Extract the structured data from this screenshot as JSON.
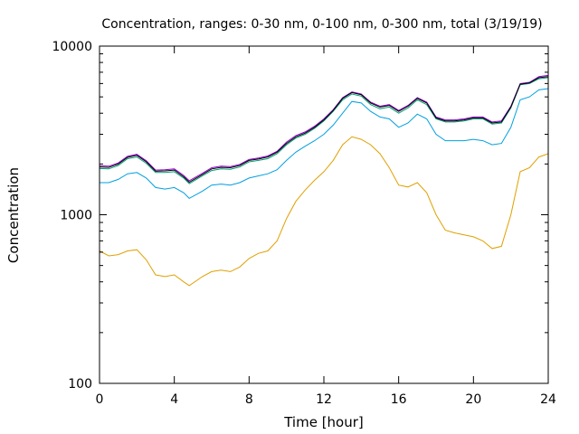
{
  "chart_data": {
    "type": "line",
    "title": "Concentration, ranges: 0-30 nm, 0-100 nm, 0-300 nm, total (3/19/19)",
    "xlabel": "Time [hour]",
    "ylabel": "Concentration",
    "xlim": [
      0,
      24
    ],
    "ylim": [
      100,
      10000
    ],
    "yscale": "log",
    "grid": false,
    "legend": "none",
    "xticks": [
      0,
      4,
      8,
      12,
      16,
      20,
      24
    ],
    "xtick_labels": [
      "0",
      "4",
      "8",
      "12",
      "16",
      "20",
      "24"
    ],
    "yticks": [
      100,
      1000,
      10000
    ],
    "ytick_labels": [
      "100",
      "1000",
      "10000"
    ],
    "series": [
      {
        "color": "#e0a000",
        "x": [
          0,
          0.5,
          1,
          1.5,
          2,
          2.5,
          3,
          3.5,
          4,
          4.5,
          4.8,
          5.5,
          6,
          6.5,
          7,
          7.5,
          8,
          8.5,
          9,
          9.5,
          10,
          10.5,
          11,
          11.5,
          12,
          12.5,
          13,
          13.5,
          14,
          14.5,
          15,
          15.5,
          16,
          16.5,
          17,
          17.5,
          18,
          18.5,
          19,
          19.5,
          20,
          20.5,
          21,
          21.5,
          22,
          22.5,
          23,
          23.5,
          24
        ],
        "y": [
          610,
          570,
          580,
          610,
          620,
          540,
          440,
          430,
          440,
          400,
          380,
          430,
          460,
          470,
          460,
          490,
          550,
          590,
          610,
          700,
          950,
          1200,
          1400,
          1600,
          1800,
          2100,
          2600,
          2900,
          2800,
          2600,
          2300,
          1900,
          1500,
          1460,
          1550,
          1350,
          1000,
          810,
          780,
          760,
          740,
          700,
          630,
          650,
          1000,
          1800,
          1900,
          2200,
          2300
        ]
      },
      {
        "color": "#00a0e0",
        "x": [
          0,
          0.5,
          1,
          1.5,
          2,
          2.5,
          3,
          3.5,
          4,
          4.5,
          4.8,
          5.5,
          6,
          6.5,
          7,
          7.5,
          8,
          8.5,
          9,
          9.5,
          10,
          10.5,
          11,
          11.5,
          12,
          12.5,
          13,
          13.5,
          14,
          14.5,
          15,
          15.5,
          16,
          16.5,
          17,
          17.5,
          18,
          18.5,
          19,
          19.5,
          20,
          20.5,
          21,
          21.5,
          22,
          22.5,
          23,
          23.5,
          24
        ],
        "y": [
          1550,
          1550,
          1620,
          1750,
          1780,
          1650,
          1450,
          1420,
          1450,
          1350,
          1250,
          1380,
          1500,
          1520,
          1500,
          1550,
          1650,
          1700,
          1750,
          1850,
          2100,
          2350,
          2550,
          2750,
          3000,
          3400,
          4000,
          4700,
          4600,
          4100,
          3800,
          3700,
          3300,
          3500,
          3950,
          3700,
          3000,
          2750,
          2750,
          2750,
          2800,
          2750,
          2600,
          2650,
          3300,
          4800,
          5000,
          5500,
          5600
        ]
      },
      {
        "color": "#009e73",
        "x": [
          0,
          0.5,
          1,
          1.5,
          2,
          2.5,
          3,
          3.5,
          4,
          4.5,
          4.8,
          5.5,
          6,
          6.5,
          7,
          7.5,
          8,
          8.5,
          9,
          9.5,
          10,
          10.5,
          11,
          11.5,
          12,
          12.5,
          13,
          13.5,
          14,
          14.5,
          15,
          15.5,
          16,
          16.5,
          17,
          17.5,
          18,
          18.5,
          19,
          19.5,
          20,
          20.5,
          21,
          21.5,
          22,
          22.5,
          23,
          23.5,
          24
        ],
        "y": [
          1880,
          1870,
          1960,
          2150,
          2200,
          2020,
          1780,
          1780,
          1800,
          1650,
          1530,
          1700,
          1830,
          1870,
          1860,
          1920,
          2060,
          2100,
          2150,
          2300,
          2600,
          2850,
          3000,
          3250,
          3600,
          4100,
          4800,
          5200,
          5050,
          4500,
          4250,
          4350,
          4000,
          4300,
          4800,
          4500,
          3700,
          3550,
          3550,
          3600,
          3700,
          3700,
          3450,
          3500,
          4300,
          5900,
          6000,
          6400,
          6500
        ]
      },
      {
        "color": "#9400d3",
        "x": [
          0,
          0.5,
          1,
          1.5,
          2,
          2.5,
          3,
          3.5,
          4,
          4.5,
          4.8,
          5.5,
          6,
          6.5,
          7,
          7.5,
          8,
          8.5,
          9,
          9.5,
          10,
          10.5,
          11,
          11.5,
          12,
          12.5,
          13,
          13.5,
          14,
          14.5,
          15,
          15.5,
          16,
          16.5,
          17,
          17.5,
          18,
          18.5,
          19,
          19.5,
          20,
          20.5,
          21,
          21.5,
          22,
          22.5,
          23,
          23.5,
          24
        ],
        "y": [
          1950,
          1940,
          2030,
          2220,
          2280,
          2090,
          1840,
          1850,
          1870,
          1710,
          1590,
          1760,
          1900,
          1940,
          1930,
          1990,
          2130,
          2170,
          2230,
          2380,
          2700,
          2950,
          3100,
          3350,
          3700,
          4200,
          4950,
          5350,
          5200,
          4650,
          4400,
          4500,
          4150,
          4450,
          4950,
          4650,
          3800,
          3650,
          3650,
          3700,
          3800,
          3800,
          3550,
          3600,
          4400,
          6000,
          6100,
          6600,
          6700
        ]
      },
      {
        "color": "#000000",
        "x": [
          0,
          0.5,
          1,
          1.5,
          2,
          2.5,
          3,
          3.5,
          4,
          4.5,
          4.8,
          5.5,
          6,
          6.5,
          7,
          7.5,
          8,
          8.5,
          9,
          9.5,
          10,
          10.5,
          11,
          11.5,
          12,
          12.5,
          13,
          13.5,
          14,
          14.5,
          15,
          15.5,
          16,
          16.5,
          17,
          17.5,
          18,
          18.5,
          19,
          19.5,
          20,
          20.5,
          21,
          21.5,
          22,
          22.5,
          23,
          23.5,
          24
        ],
        "y": [
          1920,
          1910,
          2000,
          2190,
          2250,
          2060,
          1810,
          1820,
          1840,
          1680,
          1560,
          1730,
          1870,
          1910,
          1900,
          1960,
          2100,
          2140,
          2200,
          2350,
          2650,
          2900,
          3050,
          3300,
          3650,
          4150,
          4900,
          5300,
          5150,
          4600,
          4350,
          4450,
          4100,
          4400,
          4900,
          4600,
          3750,
          3600,
          3600,
          3650,
          3750,
          3750,
          3500,
          3550,
          4350,
          5950,
          6050,
          6500,
          6600
        ]
      }
    ]
  }
}
